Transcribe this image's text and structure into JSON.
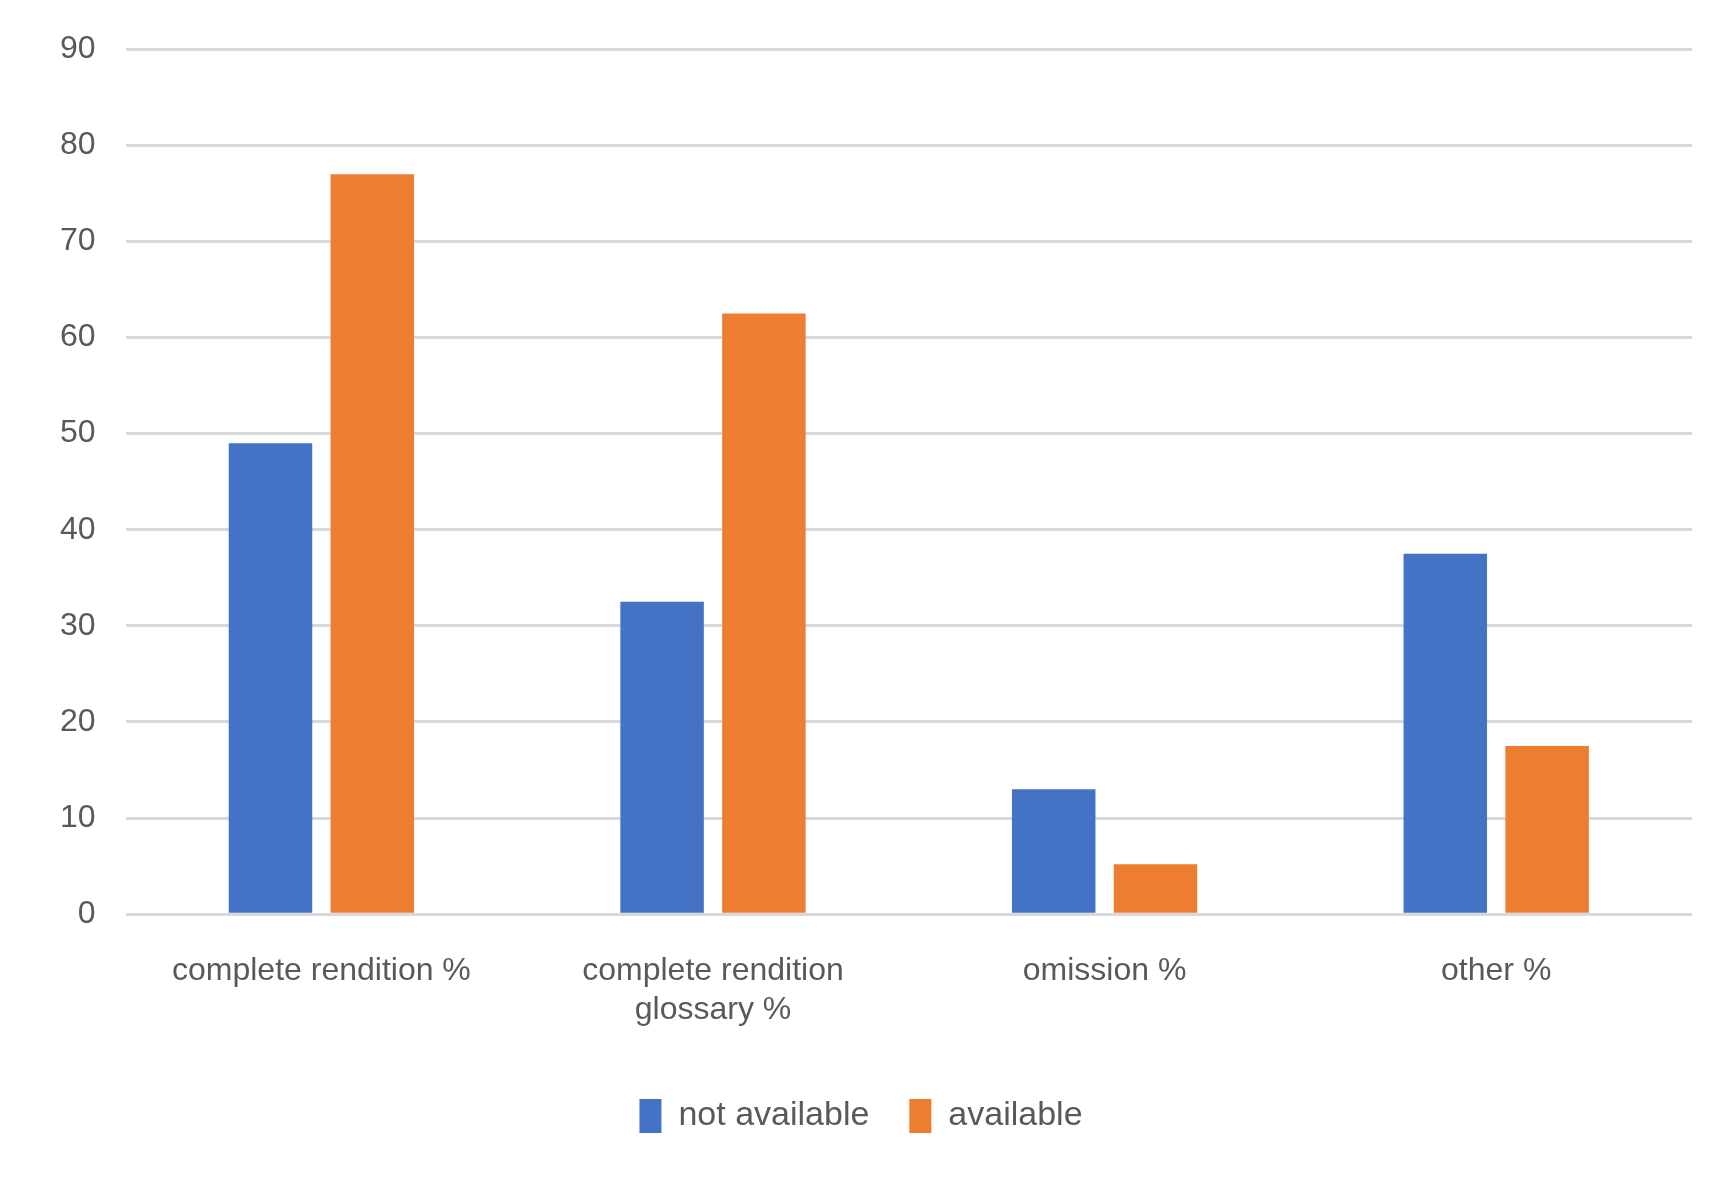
{
  "chart_data": {
    "type": "bar",
    "categories": [
      "complete rendition %",
      "complete rendition glossary %",
      "omission %",
      "other %"
    ],
    "series": [
      {
        "name": "not available",
        "color": "#4472c4",
        "values": [
          49,
          32.5,
          13,
          37.5
        ]
      },
      {
        "name": "available",
        "color": "#ed7d31",
        "values": [
          77,
          62.5,
          5.2,
          17.5
        ]
      }
    ],
    "ylim": [
      0,
      90
    ],
    "yticks": [
      0,
      10,
      20,
      30,
      40,
      50,
      60,
      70,
      80,
      90
    ],
    "grid": "y",
    "legend": "bottom"
  }
}
